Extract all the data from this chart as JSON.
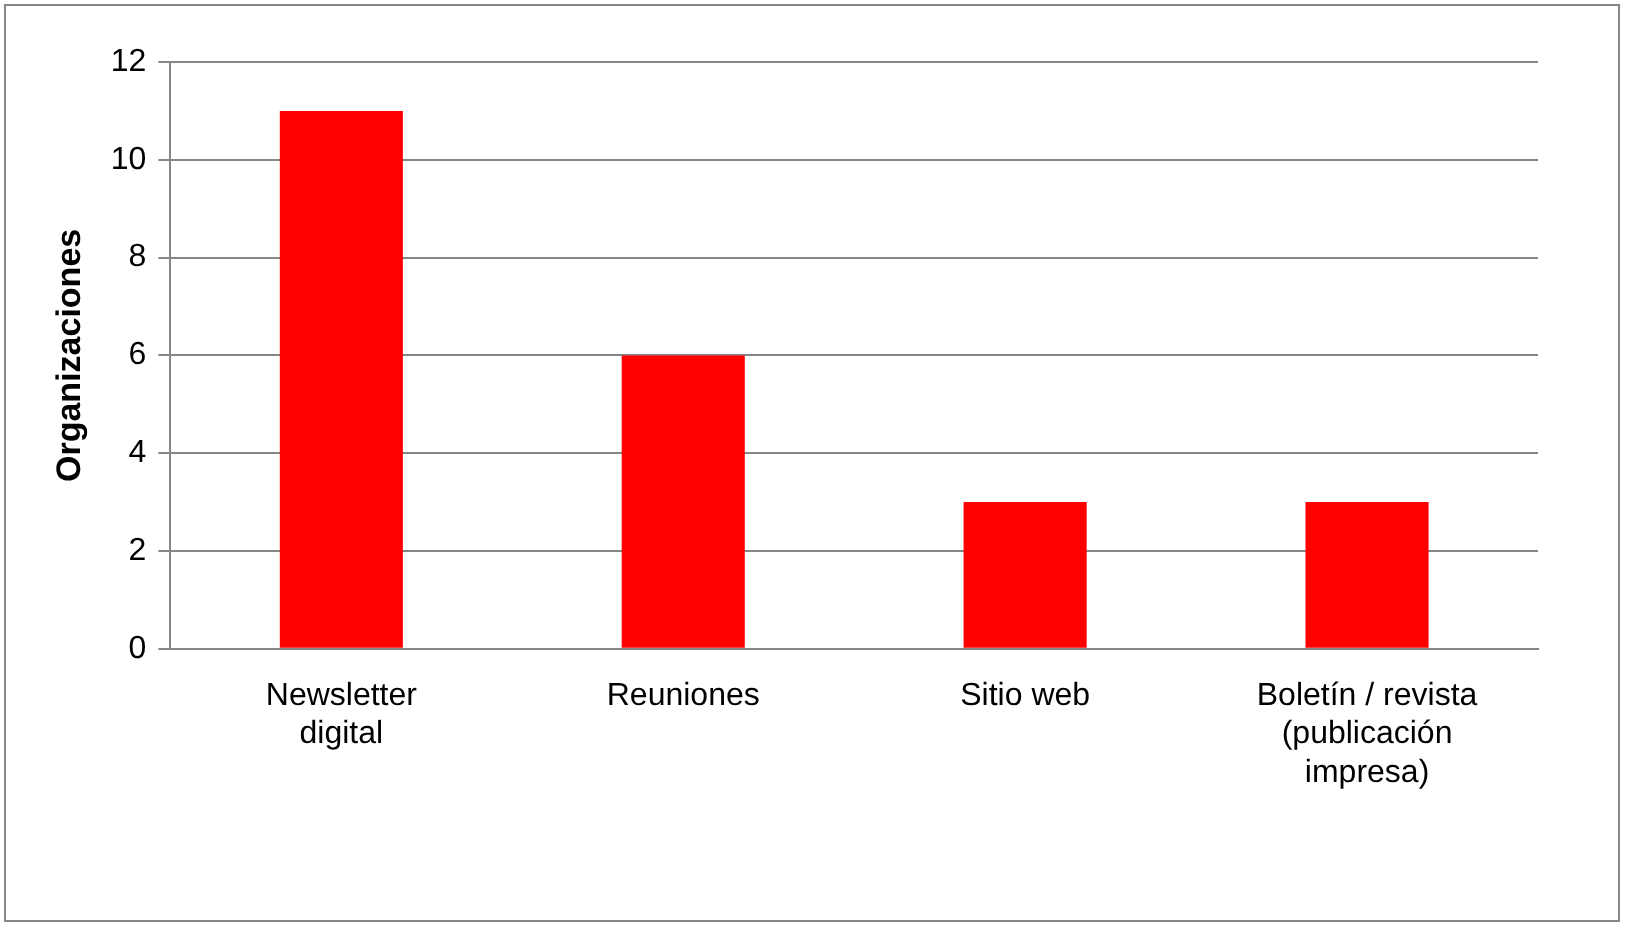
{
  "chart_data": {
    "type": "bar",
    "ylabel": "Organizaciones",
    "categories": [
      "Newsletter digital",
      "Reuniones",
      "Sitio web",
      "Boletín / revista (publicación impresa)"
    ],
    "values": [
      11,
      6,
      3,
      3
    ],
    "color": "#ff0000",
    "ylim": [
      0,
      12
    ],
    "yticks": [
      0,
      2,
      4,
      6,
      8,
      10,
      12
    ],
    "grid": "y",
    "legend": false
  }
}
